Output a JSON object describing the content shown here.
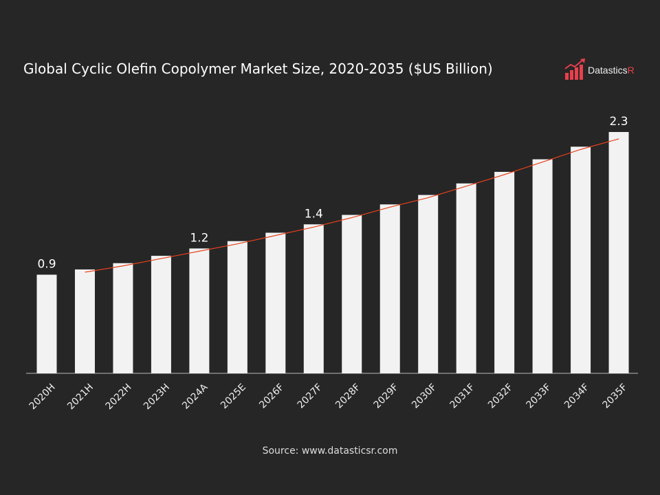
{
  "chart_data": {
    "type": "bar",
    "title": "Global Cyclic Olefin Copolymer Market Size, 2020-2035 ($US Billion)",
    "categories": [
      "2020H",
      "2021H",
      "2022H",
      "2023H",
      "2024A",
      "2025E",
      "2026F",
      "2027F",
      "2028F",
      "2029F",
      "2030F",
      "2031F",
      "2032F",
      "2033F",
      "2034F",
      "2035F"
    ],
    "values": [
      0.94,
      0.99,
      1.05,
      1.12,
      1.19,
      1.26,
      1.34,
      1.42,
      1.51,
      1.61,
      1.7,
      1.81,
      1.92,
      2.04,
      2.16,
      2.3
    ],
    "data_labels": {
      "0": "0.9",
      "4": "1.2",
      "7": "1.4",
      "15": "2.3"
    },
    "trendline": {
      "from": "2021H",
      "to": "2035F",
      "color": "#e8401c"
    },
    "ylim": [
      0,
      2.45
    ],
    "bar_color": "#f2f2f2",
    "background": "#262626",
    "grid": false,
    "xlabel": "",
    "ylabel": ""
  },
  "logo": {
    "text_main": "Datastics",
    "text_accent": "R",
    "accent_color": "#e8404c"
  },
  "source": "Source: www.datasticsr.com"
}
